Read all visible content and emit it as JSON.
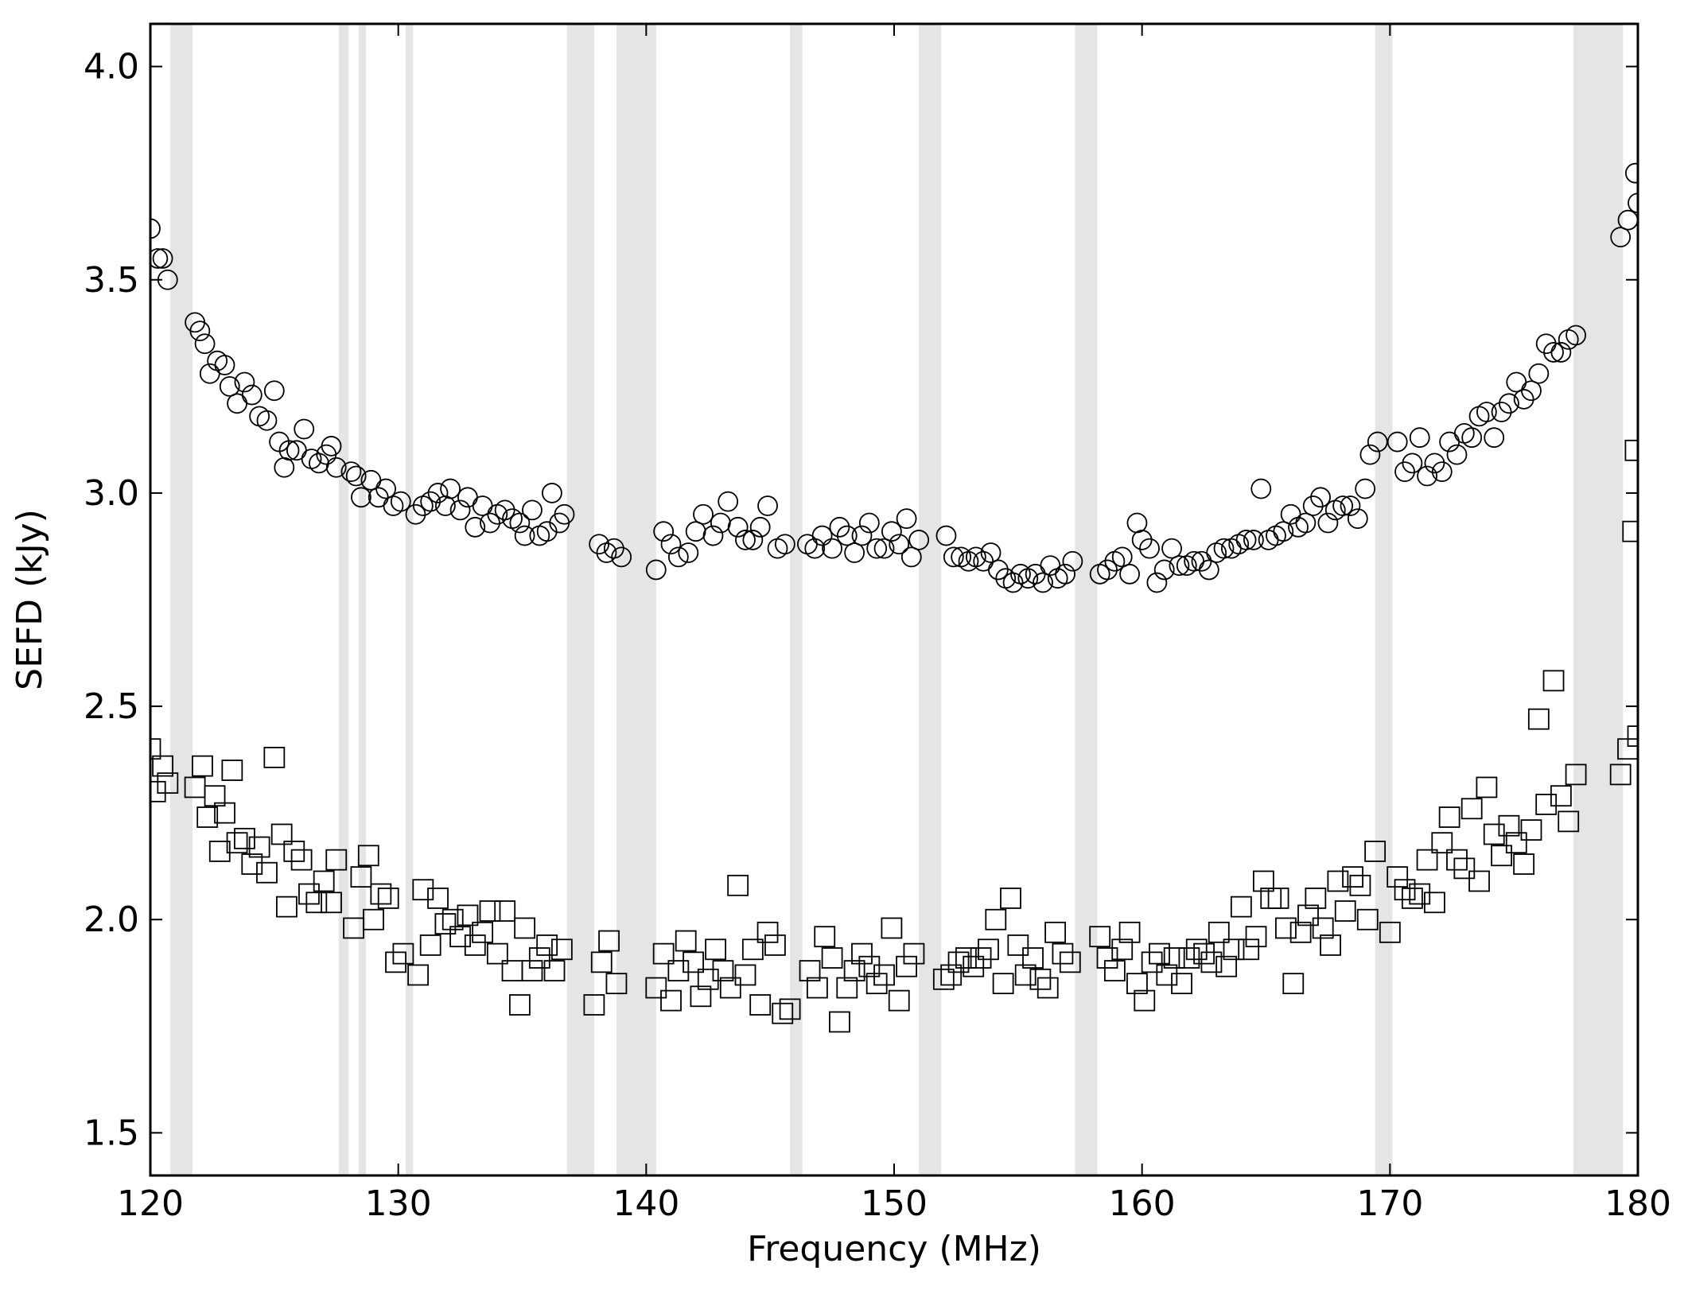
{
  "chart_data": {
    "type": "scatter",
    "xlabel": "Frequency (MHz)",
    "ylabel": "SEFD (kJy)",
    "xlim": [
      120,
      180
    ],
    "ylim": [
      1.4,
      4.1
    ],
    "xticks": [
      120,
      130,
      140,
      150,
      160,
      170,
      180
    ],
    "yticks": [
      1.5,
      {
        "value": 2,
        "label": "2.0"
      },
      2.5,
      {
        "value": 3,
        "label": "3.0"
      },
      3.5,
      {
        "value": 4,
        "label": "4.0"
      }
    ],
    "grid": false,
    "flagged_bands": {
      "color": "#e5e5e5",
      "ranges": [
        [
          120.8,
          121.7
        ],
        [
          127.6,
          128.0
        ],
        [
          128.4,
          128.7
        ],
        [
          130.3,
          130.6
        ],
        [
          136.8,
          137.9
        ],
        [
          138.8,
          140.4
        ],
        [
          145.8,
          146.3
        ],
        [
          151.0,
          151.9
        ],
        [
          157.3,
          158.2
        ],
        [
          169.4,
          170.1
        ],
        [
          177.4,
          179.4
        ]
      ]
    },
    "series": [
      {
        "marker": "circle",
        "color": "#000000",
        "x": [
          120.0,
          120.3,
          120.5,
          120.7,
          121.8,
          122.0,
          122.2,
          122.4,
          122.7,
          123.0,
          123.2,
          123.5,
          123.8,
          124.1,
          124.4,
          124.7,
          125.0,
          125.2,
          125.4,
          125.6,
          125.9,
          126.2,
          126.5,
          126.8,
          127.1,
          127.3,
          127.5,
          128.1,
          128.3,
          128.5,
          128.9,
          129.2,
          129.5,
          129.8,
          130.1,
          130.7,
          131.0,
          131.3,
          131.6,
          131.9,
          132.1,
          132.5,
          132.8,
          133.1,
          133.4,
          133.7,
          134.0,
          134.3,
          134.6,
          134.9,
          135.1,
          135.4,
          135.7,
          136.0,
          136.2,
          136.5,
          136.7,
          138.1,
          138.4,
          138.7,
          139.0,
          140.4,
          140.7,
          141.0,
          141.3,
          141.7,
          142.0,
          142.3,
          142.7,
          143.0,
          143.3,
          143.7,
          144.0,
          144.3,
          144.6,
          144.9,
          145.3,
          145.6,
          146.5,
          146.8,
          147.1,
          147.5,
          147.8,
          148.1,
          148.4,
          148.7,
          149.0,
          149.3,
          149.6,
          149.9,
          150.2,
          150.5,
          150.7,
          151.0,
          152.1,
          152.4,
          152.7,
          153.0,
          153.3,
          153.6,
          153.9,
          154.2,
          154.5,
          154.8,
          155.1,
          155.4,
          155.7,
          156.0,
          156.3,
          156.6,
          156.9,
          157.2,
          158.3,
          158.6,
          158.9,
          159.2,
          159.5,
          159.8,
          160.0,
          160.3,
          160.6,
          160.9,
          161.2,
          161.5,
          161.8,
          162.1,
          162.4,
          162.7,
          163.0,
          163.3,
          163.6,
          163.9,
          164.2,
          164.5,
          164.8,
          165.1,
          165.4,
          165.7,
          166.0,
          166.3,
          166.6,
          166.9,
          167.2,
          167.5,
          167.8,
          168.1,
          168.4,
          168.7,
          169.0,
          169.2,
          169.5,
          170.3,
          170.6,
          170.9,
          171.2,
          171.5,
          171.8,
          172.1,
          172.4,
          172.7,
          173.0,
          173.3,
          173.6,
          173.9,
          174.2,
          174.5,
          174.8,
          175.1,
          175.4,
          175.7,
          176.0,
          176.3,
          176.6,
          176.9,
          177.2,
          177.5,
          179.3,
          179.6,
          179.9,
          180.0
        ],
        "values": [
          3.62,
          3.55,
          3.55,
          3.5,
          3.4,
          3.38,
          3.35,
          3.28,
          3.31,
          3.3,
          3.25,
          3.21,
          3.26,
          3.23,
          3.18,
          3.17,
          3.24,
          3.12,
          3.06,
          3.1,
          3.1,
          3.15,
          3.08,
          3.07,
          3.09,
          3.11,
          3.06,
          3.05,
          3.04,
          2.99,
          3.03,
          2.99,
          3.01,
          2.97,
          2.98,
          2.95,
          2.97,
          2.98,
          3.0,
          2.97,
          3.01,
          2.96,
          2.99,
          2.92,
          2.97,
          2.93,
          2.95,
          2.96,
          2.94,
          2.93,
          2.9,
          2.96,
          2.9,
          2.91,
          3.0,
          2.93,
          2.95,
          2.88,
          2.86,
          2.87,
          2.85,
          2.82,
          2.91,
          2.88,
          2.85,
          2.86,
          2.91,
          2.95,
          2.9,
          2.93,
          2.98,
          2.92,
          2.89,
          2.89,
          2.92,
          2.97,
          2.87,
          2.88,
          2.88,
          2.87,
          2.9,
          2.87,
          2.92,
          2.9,
          2.86,
          2.9,
          2.93,
          2.87,
          2.87,
          2.91,
          2.88,
          2.94,
          2.85,
          2.89,
          2.9,
          2.85,
          2.85,
          2.84,
          2.85,
          2.84,
          2.86,
          2.82,
          2.8,
          2.79,
          2.81,
          2.8,
          2.81,
          2.79,
          2.83,
          2.8,
          2.81,
          2.84,
          2.81,
          2.82,
          2.84,
          2.85,
          2.81,
          2.93,
          2.89,
          2.87,
          2.79,
          2.82,
          2.87,
          2.83,
          2.83,
          2.84,
          2.84,
          2.82,
          2.86,
          2.87,
          2.87,
          2.88,
          2.89,
          2.89,
          3.01,
          2.89,
          2.9,
          2.91,
          2.95,
          2.92,
          2.93,
          2.97,
          2.99,
          2.93,
          2.96,
          2.97,
          2.97,
          2.94,
          3.01,
          3.09,
          3.12,
          3.12,
          3.05,
          3.07,
          3.13,
          3.04,
          3.07,
          3.05,
          3.12,
          3.09,
          3.14,
          3.13,
          3.18,
          3.19,
          3.13,
          3.19,
          3.21,
          3.26,
          3.22,
          3.24,
          3.28,
          3.35,
          3.33,
          3.33,
          3.36,
          3.37,
          3.6,
          3.64,
          3.75,
          3.68
        ]
      },
      {
        "marker": "square",
        "color": "#000000",
        "x": [
          120.0,
          120.2,
          120.5,
          120.7,
          121.8,
          122.1,
          122.3,
          122.6,
          122.8,
          123.0,
          123.3,
          123.5,
          123.8,
          124.1,
          124.4,
          124.7,
          125.0,
          125.3,
          125.5,
          125.8,
          126.1,
          126.4,
          126.7,
          127.0,
          127.3,
          127.5,
          128.2,
          128.5,
          128.8,
          129.0,
          129.3,
          129.6,
          129.9,
          130.2,
          130.8,
          131.0,
          131.3,
          131.6,
          131.9,
          132.2,
          132.5,
          132.8,
          133.1,
          133.4,
          133.7,
          134.0,
          134.3,
          134.6,
          134.9,
          135.1,
          135.4,
          135.7,
          136.0,
          136.3,
          136.6,
          137.9,
          138.2,
          138.5,
          138.8,
          140.4,
          140.7,
          141.0,
          141.3,
          141.6,
          141.9,
          142.2,
          142.5,
          142.8,
          143.1,
          143.4,
          143.7,
          144.0,
          144.3,
          144.6,
          144.9,
          145.2,
          145.5,
          145.8,
          146.6,
          146.9,
          147.2,
          147.5,
          147.8,
          148.1,
          148.4,
          148.7,
          149.0,
          149.3,
          149.6,
          149.9,
          150.2,
          150.5,
          150.8,
          152.0,
          152.3,
          152.6,
          152.9,
          153.2,
          153.5,
          153.8,
          154.1,
          154.4,
          154.7,
          155.0,
          155.3,
          155.6,
          155.9,
          156.2,
          156.5,
          156.8,
          157.1,
          158.3,
          158.6,
          158.9,
          159.2,
          159.5,
          159.8,
          160.1,
          160.4,
          160.7,
          161.0,
          161.3,
          161.6,
          161.9,
          162.2,
          162.5,
          162.8,
          163.1,
          163.4,
          163.7,
          164.0,
          164.3,
          164.6,
          164.9,
          165.2,
          165.5,
          165.8,
          166.1,
          166.4,
          166.7,
          167.0,
          167.3,
          167.6,
          167.9,
          168.2,
          168.5,
          168.8,
          169.1,
          169.4,
          170.0,
          170.3,
          170.6,
          170.9,
          171.2,
          171.5,
          171.8,
          172.1,
          172.4,
          172.7,
          173.0,
          173.3,
          173.6,
          173.9,
          174.2,
          174.5,
          174.8,
          175.1,
          175.4,
          175.7,
          176.0,
          176.3,
          176.6,
          176.9,
          177.2,
          177.5,
          179.3,
          179.6,
          179.8,
          179.9,
          180.0
        ],
        "values": [
          2.4,
          2.3,
          2.36,
          2.32,
          2.31,
          2.36,
          2.24,
          2.29,
          2.16,
          2.25,
          2.35,
          2.18,
          2.19,
          2.13,
          2.17,
          2.11,
          2.38,
          2.2,
          2.03,
          2.16,
          2.14,
          2.06,
          2.04,
          2.09,
          2.04,
          2.14,
          1.98,
          2.1,
          2.15,
          2.0,
          2.06,
          2.05,
          1.9,
          1.92,
          1.87,
          2.07,
          1.94,
          2.05,
          1.99,
          2.0,
          1.96,
          2.01,
          1.94,
          1.97,
          2.02,
          1.92,
          2.02,
          1.88,
          1.8,
          1.98,
          1.88,
          1.91,
          1.94,
          1.88,
          1.93,
          1.8,
          1.9,
          1.95,
          1.85,
          1.84,
          1.92,
          1.81,
          1.88,
          1.95,
          1.9,
          1.82,
          1.86,
          1.93,
          1.88,
          1.84,
          2.08,
          1.87,
          1.93,
          1.8,
          1.97,
          1.94,
          1.78,
          1.79,
          1.88,
          1.84,
          1.96,
          1.91,
          1.76,
          1.84,
          1.88,
          1.92,
          1.89,
          1.85,
          1.87,
          1.98,
          1.81,
          1.89,
          1.92,
          1.86,
          1.87,
          1.9,
          1.91,
          1.89,
          1.91,
          1.93,
          2.0,
          1.85,
          2.05,
          1.94,
          1.87,
          1.91,
          1.86,
          1.84,
          1.97,
          1.92,
          1.9,
          1.96,
          1.91,
          1.88,
          1.93,
          1.97,
          1.85,
          1.81,
          1.9,
          1.92,
          1.87,
          1.91,
          1.85,
          1.91,
          1.93,
          1.92,
          1.9,
          1.97,
          1.89,
          1.93,
          2.03,
          1.93,
          1.96,
          2.09,
          2.05,
          2.05,
          1.98,
          1.85,
          1.97,
          2.01,
          2.05,
          1.98,
          1.94,
          2.09,
          2.02,
          2.1,
          2.08,
          2.0,
          2.16,
          1.97,
          2.1,
          2.07,
          2.05,
          2.06,
          2.14,
          2.04,
          2.18,
          2.24,
          2.14,
          2.12,
          2.26,
          2.09,
          2.31,
          2.2,
          2.15,
          2.22,
          2.18,
          2.13,
          2.21,
          2.47,
          2.27,
          2.56,
          2.29,
          2.23,
          2.34,
          2.34,
          2.4,
          2.91,
          3.1,
          2.43
        ]
      }
    ]
  }
}
